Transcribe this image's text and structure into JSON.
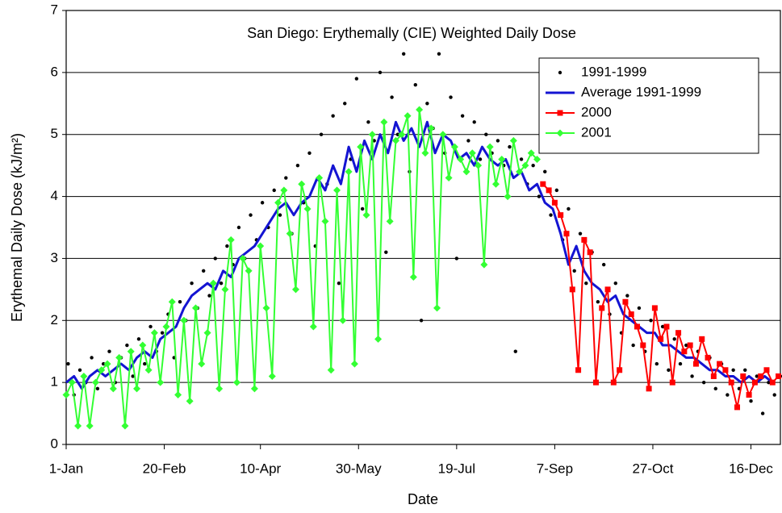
{
  "chart_data": {
    "type": "line",
    "title": "San Diego: Erythemally (CIE) Weighted Daily Dose",
    "x_label": "Date",
    "y_label": "Erythemal Daily Dose (kJ/m²)",
    "xlim": [
      1,
      365
    ],
    "ylim": [
      0,
      7
    ],
    "xticks": [
      {
        "value": 1,
        "label": "1-Jan"
      },
      {
        "value": 51,
        "label": "20-Feb"
      },
      {
        "value": 100,
        "label": "10-Apr"
      },
      {
        "value": 150,
        "label": "30-May"
      },
      {
        "value": 200,
        "label": "19-Jul"
      },
      {
        "value": 250,
        "label": "7-Sep"
      },
      {
        "value": 300,
        "label": "27-Oct"
      },
      {
        "value": 350,
        "label": "16-Dec"
      }
    ],
    "yticks": [
      0,
      1,
      2,
      3,
      4,
      5,
      6,
      7
    ],
    "grid": true,
    "legend": "upper right",
    "series": [
      {
        "name": "1991-1999",
        "color": "#000000",
        "marker": "dot",
        "line": false,
        "x": [
          2,
          5,
          8,
          11,
          14,
          17,
          20,
          23,
          26,
          29,
          32,
          35,
          38,
          41,
          44,
          47,
          50,
          53,
          56,
          59,
          62,
          65,
          68,
          71,
          74,
          77,
          80,
          83,
          86,
          89,
          92,
          95,
          98,
          101,
          104,
          107,
          110,
          113,
          116,
          119,
          122,
          125,
          128,
          131,
          134,
          137,
          140,
          143,
          146,
          149,
          152,
          155,
          158,
          161,
          164,
          167,
          170,
          173,
          176,
          179,
          182,
          185,
          188,
          191,
          194,
          197,
          200,
          203,
          206,
          209,
          212,
          215,
          218,
          221,
          224,
          227,
          230,
          233,
          236,
          239,
          242,
          245,
          248,
          251,
          254,
          257,
          260,
          263,
          266,
          269,
          272,
          275,
          278,
          281,
          284,
          287,
          290,
          293,
          296,
          299,
          302,
          305,
          308,
          311,
          314,
          317,
          320,
          323,
          326,
          329,
          332,
          335,
          338,
          341,
          344,
          347,
          350,
          353,
          356,
          359,
          362,
          365
        ],
        "values": [
          1.3,
          0.8,
          1.2,
          1.0,
          1.4,
          0.9,
          1.3,
          1.5,
          1.0,
          1.4,
          1.6,
          1.1,
          1.7,
          1.3,
          1.9,
          1.5,
          1.8,
          2.1,
          1.4,
          2.3,
          2.0,
          2.6,
          2.2,
          2.8,
          2.4,
          3.0,
          2.6,
          3.2,
          2.9,
          3.5,
          3.0,
          3.7,
          3.3,
          3.9,
          3.5,
          4.1,
          3.7,
          4.3,
          3.4,
          4.5,
          3.9,
          4.7,
          3.2,
          5.0,
          4.2,
          5.3,
          2.6,
          5.5,
          4.6,
          5.9,
          3.8,
          5.2,
          4.9,
          6.0,
          3.1,
          5.6,
          5.0,
          6.3,
          4.4,
          5.8,
          2.0,
          5.5,
          5.1,
          6.3,
          4.7,
          5.6,
          3.0,
          5.3,
          4.9,
          5.2,
          4.6,
          5.0,
          4.7,
          4.9,
          4.5,
          4.8,
          1.5,
          4.6,
          4.2,
          4.5,
          4.0,
          4.4,
          3.7,
          4.1,
          3.3,
          3.8,
          2.8,
          3.4,
          2.6,
          3.1,
          2.3,
          2.9,
          2.1,
          2.6,
          1.8,
          2.4,
          1.6,
          2.2,
          1.5,
          2.0,
          1.3,
          1.9,
          1.2,
          1.7,
          1.3,
          1.6,
          1.1,
          1.5,
          1.0,
          1.4,
          0.9,
          1.3,
          0.8,
          1.2,
          0.9,
          1.2,
          0.7,
          1.1,
          0.5,
          1.0,
          0.8,
          1.1
        ]
      },
      {
        "name": "Average 1991-1999",
        "color": "#1414d2",
        "marker": "none",
        "line": true,
        "x": [
          1,
          5,
          9,
          13,
          17,
          21,
          25,
          29,
          33,
          37,
          41,
          45,
          49,
          53,
          57,
          61,
          65,
          69,
          73,
          77,
          81,
          85,
          89,
          93,
          97,
          101,
          105,
          109,
          113,
          117,
          121,
          125,
          129,
          133,
          137,
          141,
          145,
          149,
          153,
          157,
          161,
          165,
          169,
          173,
          177,
          181,
          185,
          189,
          193,
          197,
          201,
          205,
          209,
          213,
          217,
          221,
          225,
          229,
          233,
          237,
          241,
          245,
          249,
          253,
          257,
          261,
          265,
          269,
          273,
          277,
          281,
          285,
          289,
          293,
          297,
          301,
          305,
          309,
          313,
          317,
          321,
          325,
          329,
          333,
          337,
          341,
          345,
          349,
          353,
          357,
          361
        ],
        "values": [
          1.0,
          1.1,
          0.9,
          1.1,
          1.2,
          1.1,
          1.2,
          1.3,
          1.2,
          1.4,
          1.5,
          1.4,
          1.7,
          1.8,
          1.9,
          2.2,
          2.4,
          2.5,
          2.6,
          2.5,
          2.8,
          2.7,
          3.0,
          3.1,
          3.2,
          3.4,
          3.6,
          3.8,
          3.9,
          3.7,
          3.9,
          4.0,
          4.3,
          4.1,
          4.5,
          4.2,
          4.8,
          4.4,
          4.9,
          4.6,
          5.0,
          4.7,
          5.2,
          4.9,
          5.1,
          4.8,
          5.2,
          4.7,
          5.0,
          4.9,
          4.6,
          4.7,
          4.5,
          4.8,
          4.6,
          4.5,
          4.6,
          4.3,
          4.4,
          4.1,
          4.2,
          3.9,
          3.8,
          3.4,
          2.9,
          3.2,
          2.8,
          2.6,
          2.5,
          2.3,
          2.4,
          2.1,
          2.0,
          1.9,
          1.8,
          1.8,
          1.6,
          1.6,
          1.5,
          1.4,
          1.4,
          1.3,
          1.2,
          1.2,
          1.1,
          1.1,
          1.0,
          1.1,
          1.0,
          1.1,
          1.0
        ]
      },
      {
        "name": "2000",
        "color": "#ff0000",
        "marker": "square",
        "line": true,
        "x": [
          244,
          247,
          250,
          253,
          256,
          259,
          262,
          265,
          268,
          271,
          274,
          277,
          280,
          283,
          286,
          289,
          292,
          295,
          298,
          301,
          304,
          307,
          310,
          313,
          316,
          319,
          322,
          325,
          328,
          331,
          334,
          337,
          340,
          343,
          346,
          349,
          352,
          355,
          358,
          361,
          364
        ],
        "values": [
          4.2,
          4.1,
          3.9,
          3.7,
          3.4,
          2.5,
          1.2,
          3.3,
          3.1,
          1.0,
          2.2,
          2.5,
          1.0,
          1.2,
          2.3,
          2.1,
          1.9,
          1.6,
          0.9,
          2.2,
          1.7,
          1.9,
          1.0,
          1.8,
          1.5,
          1.6,
          1.3,
          1.7,
          1.4,
          1.1,
          1.3,
          1.2,
          1.0,
          0.6,
          1.1,
          0.8,
          1.0,
          1.1,
          1.2,
          1.0,
          1.1
        ]
      },
      {
        "name": "2001",
        "color": "#33ff33",
        "marker": "diamond",
        "line": true,
        "x": [
          1,
          4,
          7,
          10,
          13,
          16,
          19,
          22,
          25,
          28,
          31,
          34,
          37,
          40,
          43,
          46,
          49,
          52,
          55,
          58,
          61,
          64,
          67,
          70,
          73,
          76,
          79,
          82,
          85,
          88,
          91,
          94,
          97,
          100,
          103,
          106,
          109,
          112,
          115,
          118,
          121,
          124,
          127,
          130,
          133,
          136,
          139,
          142,
          145,
          148,
          151,
          154,
          157,
          160,
          163,
          166,
          169,
          172,
          175,
          178,
          181,
          184,
          187,
          190,
          193,
          196,
          199,
          202,
          205,
          208,
          211,
          214,
          217,
          220,
          223,
          226,
          229,
          232,
          235,
          238,
          241
        ],
        "values": [
          0.8,
          1.0,
          0.3,
          1.1,
          0.3,
          1.0,
          1.2,
          1.3,
          0.9,
          1.4,
          0.3,
          1.5,
          0.9,
          1.6,
          1.2,
          1.8,
          1.0,
          1.9,
          2.3,
          0.8,
          2.0,
          0.7,
          2.2,
          1.3,
          1.8,
          2.6,
          0.9,
          2.5,
          3.3,
          1.0,
          3.0,
          2.8,
          0.9,
          3.2,
          2.2,
          1.1,
          3.9,
          4.1,
          3.4,
          2.5,
          4.2,
          3.8,
          1.9,
          4.3,
          3.6,
          1.2,
          4.1,
          2.0,
          4.4,
          1.3,
          4.8,
          3.7,
          5.0,
          1.7,
          5.2,
          3.6,
          4.9,
          5.0,
          5.3,
          2.7,
          5.4,
          4.7,
          5.1,
          2.2,
          5.0,
          4.3,
          4.8,
          4.6,
          4.4,
          4.7,
          4.5,
          2.9,
          4.8,
          4.2,
          4.6,
          4.0,
          4.9,
          4.4,
          4.5,
          4.7,
          4.6
        ]
      }
    ]
  }
}
